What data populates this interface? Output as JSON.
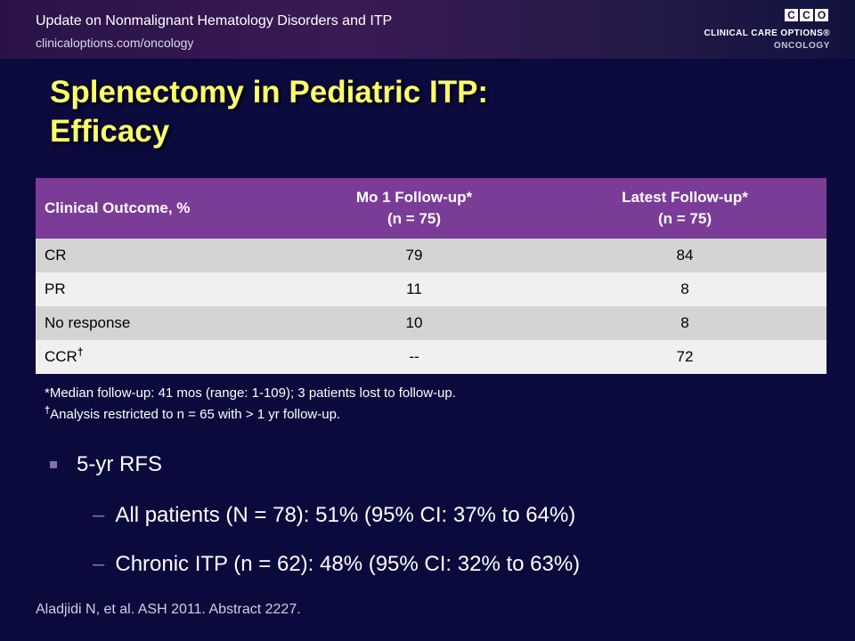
{
  "header": {
    "title": "Update on Nonmalignant Hematology Disorders and ITP",
    "url": "clinicaloptions.com/oncology"
  },
  "logo": {
    "letters": [
      "C",
      "C",
      "O"
    ],
    "line1": "CLINICAL CARE OPTIONS®",
    "line2": "ONCOLOGY"
  },
  "slide": {
    "title_line1": "Splenectomy in Pediatric ITP:",
    "title_line2": "Efficacy"
  },
  "table": {
    "headers": [
      {
        "line1": "Clinical Outcome, %",
        "line2": ""
      },
      {
        "line1": "Mo 1 Follow-up*",
        "line2": "(n = 75)"
      },
      {
        "line1": "Latest Follow-up*",
        "line2": "(n = 75)"
      }
    ],
    "rows": [
      {
        "outcome": "CR",
        "mo1": "79",
        "latest": "84"
      },
      {
        "outcome": "PR",
        "mo1": "11",
        "latest": "8"
      },
      {
        "outcome": "No response",
        "mo1": "10",
        "latest": "8"
      },
      {
        "outcome": "CCR",
        "mark": "†",
        "mo1": "--",
        "latest": "72"
      }
    ]
  },
  "footnotes": {
    "line1": "*Median follow-up: 41 mos (range: 1-109); 3 patients lost to follow-up.",
    "line2_mark": "†",
    "line2": "Analysis restricted to n = 65 with > 1 yr follow-up."
  },
  "bullets": {
    "main": "5-yr RFS",
    "dash": "–",
    "sub": [
      "All patients (N = 78): 51% (95% CI: 37% to 64%)",
      "Chronic ITP (n = 62): 48% (95% CI: 32% to 63%)"
    ]
  },
  "citation": "Aladjidi N, et al. ASH 2011. Abstract 2227.",
  "colors": {
    "background": "#0a0a3c",
    "title": "#ffff66",
    "table_header": "#7b3c98",
    "row_dark": "#d4d4d4",
    "row_light": "#f0f0f0",
    "bullet_accent": "#8a6bb5"
  }
}
